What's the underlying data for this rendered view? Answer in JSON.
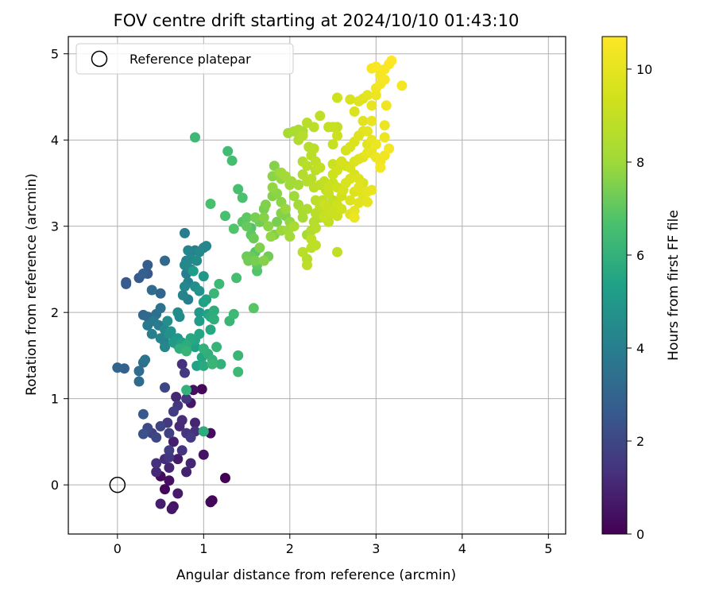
{
  "chart_data": {
    "type": "scatter",
    "title": "FOV centre drift starting at 2024/10/10 01:43:10",
    "xlabel": "Angular distance from reference (arcmin)",
    "ylabel": "Rotation from reference (arcmin)",
    "xlim": [
      -0.57,
      5.2
    ],
    "ylim": [
      -0.57,
      5.2
    ],
    "x_ticks": [
      0,
      1,
      2,
      3,
      4,
      5
    ],
    "y_ticks": [
      0,
      1,
      2,
      3,
      4,
      5
    ],
    "grid": true,
    "legend": {
      "position": "top-left",
      "entries": [
        "Reference platepar"
      ]
    },
    "reference_point": {
      "x": 0,
      "y": 0
    },
    "colorbar": {
      "label": "Hours from first FF file",
      "min": 0,
      "max": 10.7,
      "ticks": [
        0,
        2,
        4,
        6,
        8,
        10
      ],
      "colormap": "viridis"
    },
    "points": [
      [
        0.5,
        0.1,
        0.3
      ],
      [
        0.55,
        -0.05,
        0.2
      ],
      [
        0.6,
        0.05,
        0.4
      ],
      [
        0.65,
        -0.25,
        0.5
      ],
      [
        0.63,
        -0.28,
        0.6
      ],
      [
        0.7,
        0.3,
        0.7
      ],
      [
        0.6,
        0.2,
        1.0
      ],
      [
        0.45,
        0.15,
        1.1
      ],
      [
        0.45,
        0.25,
        1.3
      ],
      [
        0.55,
        0.3,
        1.2
      ],
      [
        0.6,
        0.32,
        1.5
      ],
      [
        0.65,
        0.5,
        0.8
      ],
      [
        0.8,
        0.15,
        0.9
      ],
      [
        0.85,
        0.25,
        1.0
      ],
      [
        1.0,
        0.35,
        0.5
      ],
      [
        1.08,
        0.6,
        0.3
      ],
      [
        1.08,
        -0.2,
        0.2
      ],
      [
        1.1,
        -0.18,
        0.1
      ],
      [
        1.25,
        0.08,
        0.0
      ],
      [
        0.98,
        1.11,
        0.2
      ],
      [
        0.88,
        1.1,
        0.4
      ],
      [
        0.85,
        0.95,
        0.6
      ],
      [
        0.7,
        0.92,
        1.5
      ],
      [
        0.68,
        1.02,
        1.0
      ],
      [
        0.75,
        0.75,
        1.2
      ],
      [
        0.8,
        0.6,
        1.4
      ],
      [
        0.9,
        0.72,
        1.0
      ],
      [
        0.9,
        0.62,
        1.3
      ],
      [
        0.85,
        0.55,
        1.6
      ],
      [
        0.72,
        0.68,
        1.1
      ],
      [
        0.6,
        0.6,
        1.8
      ],
      [
        0.58,
        0.72,
        1.6
      ],
      [
        0.5,
        0.68,
        1.9
      ],
      [
        0.45,
        0.55,
        2.0
      ],
      [
        0.4,
        0.6,
        1.8
      ],
      [
        0.35,
        0.66,
        2.1
      ],
      [
        0.3,
        0.59,
        2.4
      ],
      [
        0.6,
        0.4,
        1.7
      ],
      [
        0.75,
        1.4,
        1.3
      ],
      [
        0.78,
        1.3,
        1.6
      ],
      [
        0.55,
        1.13,
        2.0
      ],
      [
        0.65,
        0.85,
        1.7
      ],
      [
        0.8,
        1.0,
        1.5
      ],
      [
        0.75,
        0.4,
        1.4
      ],
      [
        0.5,
        -0.22,
        0.8
      ],
      [
        0.7,
        -0.1,
        0.7
      ],
      [
        0.3,
        0.82,
        2.6
      ],
      [
        0.25,
        1.2,
        3.2
      ],
      [
        0.25,
        1.32,
        3.3
      ],
      [
        0.3,
        1.42,
        3.4
      ],
      [
        0.32,
        1.45,
        3.6
      ],
      [
        0.0,
        1.36,
        3.0
      ],
      [
        0.08,
        1.35,
        2.9
      ],
      [
        0.1,
        2.35,
        2.5
      ],
      [
        0.1,
        2.33,
        2.7
      ],
      [
        0.25,
        2.4,
        2.6
      ],
      [
        0.3,
        2.45,
        2.8
      ],
      [
        0.35,
        2.45,
        2.5
      ],
      [
        0.35,
        2.55,
        2.7
      ],
      [
        0.4,
        2.26,
        3.3
      ],
      [
        0.5,
        2.22,
        3.0
      ],
      [
        0.55,
        2.6,
        3.2
      ],
      [
        0.3,
        1.97,
        3.1
      ],
      [
        0.35,
        1.95,
        3.2
      ],
      [
        0.45,
        1.98,
        3.4
      ],
      [
        0.5,
        2.05,
        3.5
      ],
      [
        0.42,
        1.9,
        3.7
      ],
      [
        0.48,
        1.85,
        3.9
      ],
      [
        0.35,
        1.85,
        3.8
      ],
      [
        0.4,
        1.75,
        4.0
      ],
      [
        0.5,
        1.7,
        4.2
      ],
      [
        0.55,
        1.65,
        4.1
      ],
      [
        0.55,
        1.6,
        4.3
      ],
      [
        0.55,
        1.8,
        4.4
      ],
      [
        0.58,
        1.9,
        4.6
      ],
      [
        0.6,
        1.75,
        4.7
      ],
      [
        0.62,
        1.78,
        4.8
      ],
      [
        0.7,
        1.7,
        5.0
      ],
      [
        0.7,
        1.62,
        4.9
      ],
      [
        0.65,
        1.65,
        5.1
      ],
      [
        0.7,
        2.0,
        4.5
      ],
      [
        0.72,
        1.95,
        4.4
      ],
      [
        0.76,
        2.2,
        4.2
      ],
      [
        0.82,
        2.15,
        4.0
      ],
      [
        0.78,
        2.3,
        4.3
      ],
      [
        0.82,
        2.35,
        4.1
      ],
      [
        0.8,
        2.45,
        4.0
      ],
      [
        0.85,
        2.5,
        4.2
      ],
      [
        0.78,
        2.55,
        4.4
      ],
      [
        0.8,
        2.6,
        4.1
      ],
      [
        0.85,
        2.62,
        4.3
      ],
      [
        0.82,
        2.72,
        4.2
      ],
      [
        0.9,
        2.72,
        4.0
      ],
      [
        0.78,
        2.92,
        3.9
      ],
      [
        0.92,
        2.6,
        4.5
      ],
      [
        0.95,
        2.7,
        4.4
      ],
      [
        1.0,
        2.75,
        4.2
      ],
      [
        1.03,
        2.77,
        4.3
      ],
      [
        0.9,
        2.3,
        4.6
      ],
      [
        0.95,
        2.25,
        4.8
      ],
      [
        1.0,
        2.42,
        5.0
      ],
      [
        0.88,
        2.48,
        5.2
      ],
      [
        0.95,
        2.0,
        5.0
      ],
      [
        1.0,
        2.12,
        5.3
      ],
      [
        1.03,
        2.15,
        5.4
      ],
      [
        0.95,
        1.9,
        5.2
      ],
      [
        0.95,
        1.75,
        5.5
      ],
      [
        1.05,
        1.98,
        5.4
      ],
      [
        1.08,
        1.8,
        5.6
      ],
      [
        1.08,
        1.95,
        5.7
      ],
      [
        1.12,
        2.02,
        5.8
      ],
      [
        1.12,
        1.92,
        5.9
      ],
      [
        0.9,
        1.6,
        5.3
      ],
      [
        0.9,
        1.68,
        5.5
      ],
      [
        0.85,
        1.7,
        5.6
      ],
      [
        0.8,
        1.62,
        5.8
      ],
      [
        0.75,
        1.65,
        5.4
      ],
      [
        0.72,
        1.58,
        5.9
      ],
      [
        0.8,
        1.55,
        6.1
      ],
      [
        1.0,
        1.58,
        6.0
      ],
      [
        1.05,
        1.52,
        5.9
      ],
      [
        1.0,
        1.38,
        5.7
      ],
      [
        0.98,
        1.48,
        5.5
      ],
      [
        0.92,
        1.38,
        5.4
      ],
      [
        1.1,
        1.45,
        6.0
      ],
      [
        1.1,
        1.4,
        6.2
      ],
      [
        1.15,
        1.6,
        6.1
      ],
      [
        1.2,
        1.4,
        6.0
      ],
      [
        0.9,
        4.03,
        6.3
      ],
      [
        1.0,
        0.62,
        5.8
      ],
      [
        0.8,
        1.1,
        6.0
      ],
      [
        1.12,
        2.22,
        6.2
      ],
      [
        1.18,
        2.33,
        6.3
      ],
      [
        1.3,
        1.9,
        6.2
      ],
      [
        1.35,
        1.98,
        6.3
      ],
      [
        1.4,
        1.5,
        6.2
      ],
      [
        1.4,
        1.31,
        6.3
      ],
      [
        1.38,
        2.4,
        6.5
      ],
      [
        1.25,
        3.12,
        6.6
      ],
      [
        1.28,
        3.87,
        6.4
      ],
      [
        1.33,
        3.76,
        6.5
      ],
      [
        1.4,
        3.43,
        6.6
      ],
      [
        1.45,
        3.33,
        6.7
      ],
      [
        1.08,
        3.26,
        6.6
      ],
      [
        1.35,
        2.97,
        6.8
      ],
      [
        1.45,
        3.05,
        6.9
      ],
      [
        1.5,
        3.1,
        7.0
      ],
      [
        1.5,
        3.0,
        7.1
      ],
      [
        1.55,
        2.9,
        7.0
      ],
      [
        1.55,
        2.98,
        6.8
      ],
      [
        1.58,
        2.86,
        7.2
      ],
      [
        1.6,
        2.7,
        6.9
      ],
      [
        1.55,
        2.65,
        7.1
      ],
      [
        1.5,
        2.65,
        7.2
      ],
      [
        1.52,
        2.6,
        7.3
      ],
      [
        1.62,
        2.55,
        7.0
      ],
      [
        1.62,
        2.48,
        6.8
      ],
      [
        1.58,
        2.05,
        6.9
      ],
      [
        1.6,
        2.6,
        7.4
      ],
      [
        1.65,
        2.75,
        7.5
      ],
      [
        1.75,
        2.65,
        7.3
      ],
      [
        1.7,
        2.6,
        7.6
      ],
      [
        1.65,
        3.05,
        7.3
      ],
      [
        1.6,
        3.1,
        7.4
      ],
      [
        1.7,
        3.1,
        7.6
      ],
      [
        1.75,
        3.0,
        7.7
      ],
      [
        1.78,
        2.88,
        7.8
      ],
      [
        1.82,
        2.9,
        7.5
      ],
      [
        1.7,
        3.2,
        7.4
      ],
      [
        1.72,
        3.25,
        7.5
      ],
      [
        1.8,
        3.35,
        7.6
      ],
      [
        1.85,
        3.38,
        7.7
      ],
      [
        1.8,
        3.45,
        7.8
      ],
      [
        1.9,
        3.28,
        7.7
      ],
      [
        1.9,
        3.15,
        7.6
      ],
      [
        1.95,
        3.2,
        7.9
      ],
      [
        1.95,
        3.12,
        7.5
      ],
      [
        2.0,
        3.05,
        7.8
      ],
      [
        1.85,
        3.05,
        7.4
      ],
      [
        1.98,
        2.95,
        8.0
      ],
      [
        1.9,
        2.95,
        7.9
      ],
      [
        2.0,
        2.88,
        8.1
      ],
      [
        1.8,
        3.58,
        7.7
      ],
      [
        1.82,
        3.7,
        7.6
      ],
      [
        1.88,
        3.62,
        7.9
      ],
      [
        1.9,
        3.55,
        7.8
      ],
      [
        2.0,
        3.48,
        8.0
      ],
      [
        2.02,
        3.52,
        8.1
      ],
      [
        2.1,
        3.48,
        8.2
      ],
      [
        2.05,
        3.35,
        8.0
      ],
      [
        2.1,
        3.25,
        8.1
      ],
      [
        2.15,
        3.18,
        8.3
      ],
      [
        2.15,
        3.1,
        8.2
      ],
      [
        2.2,
        3.2,
        8.4
      ],
      [
        2.05,
        3.0,
        8.3
      ],
      [
        2.2,
        2.9,
        8.2
      ],
      [
        2.25,
        2.95,
        8.5
      ],
      [
        2.3,
        2.98,
        8.4
      ],
      [
        2.28,
        3.05,
        8.6
      ],
      [
        2.35,
        3.1,
        8.5
      ],
      [
        2.15,
        2.7,
        8.7
      ],
      [
        2.2,
        2.62,
        8.6
      ],
      [
        2.25,
        2.75,
        8.8
      ],
      [
        2.3,
        2.78,
        8.9
      ],
      [
        2.55,
        2.7,
        8.9
      ],
      [
        1.98,
        4.08,
        8.2
      ],
      [
        2.05,
        4.1,
        8.3
      ],
      [
        2.1,
        4.12,
        8.4
      ],
      [
        2.15,
        4.1,
        8.3
      ],
      [
        2.1,
        4.0,
        8.5
      ],
      [
        2.15,
        4.05,
        8.6
      ],
      [
        2.2,
        4.2,
        8.7
      ],
      [
        2.28,
        4.15,
        8.8
      ],
      [
        2.35,
        4.28,
        8.9
      ],
      [
        2.22,
        3.92,
        8.6
      ],
      [
        2.25,
        3.82,
        8.7
      ],
      [
        2.28,
        3.9,
        8.8
      ],
      [
        2.3,
        3.75,
        8.9
      ],
      [
        2.35,
        3.68,
        9.0
      ],
      [
        2.3,
        3.65,
        8.8
      ],
      [
        2.2,
        3.7,
        8.7
      ],
      [
        2.15,
        3.75,
        8.6
      ],
      [
        2.15,
        3.6,
        8.5
      ],
      [
        2.2,
        3.52,
        8.6
      ],
      [
        2.25,
        3.55,
        8.7
      ],
      [
        2.28,
        3.45,
        8.8
      ],
      [
        2.35,
        3.48,
        8.9
      ],
      [
        2.4,
        3.52,
        9.0
      ],
      [
        2.42,
        3.42,
        8.9
      ],
      [
        2.45,
        3.38,
        9.1
      ],
      [
        2.5,
        3.3,
        9.0
      ],
      [
        2.5,
        3.15,
        9.1
      ],
      [
        2.45,
        3.2,
        9.0
      ],
      [
        2.4,
        3.25,
        9.2
      ],
      [
        2.38,
        3.3,
        8.9
      ],
      [
        2.3,
        3.3,
        8.8
      ],
      [
        2.3,
        3.15,
        8.7
      ],
      [
        2.35,
        3.22,
        8.8
      ],
      [
        2.4,
        3.12,
        9.1
      ],
      [
        2.45,
        3.05,
        9.0
      ],
      [
        2.48,
        3.18,
        9.2
      ],
      [
        2.55,
        3.25,
        9.3
      ],
      [
        2.55,
        3.12,
        9.2
      ],
      [
        2.6,
        3.2,
        9.4
      ],
      [
        2.45,
        3.45,
        9.2
      ],
      [
        2.5,
        3.5,
        9.1
      ],
      [
        2.55,
        3.45,
        9.3
      ],
      [
        2.6,
        3.35,
        9.4
      ],
      [
        2.62,
        3.42,
        9.5
      ],
      [
        2.65,
        3.5,
        9.6
      ],
      [
        2.7,
        3.55,
        9.7
      ],
      [
        2.75,
        3.6,
        9.5
      ],
      [
        2.8,
        3.55,
        9.8
      ],
      [
        2.8,
        3.45,
        9.9
      ],
      [
        2.85,
        3.5,
        9.6
      ],
      [
        2.75,
        3.4,
        9.7
      ],
      [
        2.7,
        3.3,
        9.8
      ],
      [
        2.85,
        3.35,
        9.9
      ],
      [
        2.9,
        3.4,
        10.0
      ],
      [
        2.5,
        3.6,
        9.3
      ],
      [
        2.55,
        3.65,
        9.4
      ],
      [
        2.5,
        3.72,
        9.2
      ],
      [
        2.6,
        3.75,
        9.5
      ],
      [
        2.65,
        3.7,
        9.4
      ],
      [
        2.7,
        3.68,
        9.6
      ],
      [
        2.75,
        3.75,
        9.7
      ],
      [
        2.8,
        3.78,
        9.8
      ],
      [
        2.85,
        3.8,
        9.9
      ],
      [
        2.9,
        3.85,
        10.0
      ],
      [
        2.95,
        3.85,
        10.1
      ],
      [
        3.0,
        3.8,
        10.2
      ],
      [
        3.05,
        3.75,
        10.3
      ],
      [
        3.05,
        3.68,
        10.4
      ],
      [
        3.1,
        3.82,
        10.3
      ],
      [
        3.15,
        3.9,
        10.4
      ],
      [
        3.1,
        4.03,
        10.2
      ],
      [
        2.5,
        3.95,
        9.1
      ],
      [
        2.55,
        4.05,
        9.2
      ],
      [
        2.45,
        4.15,
        9.0
      ],
      [
        2.5,
        4.15,
        9.1
      ],
      [
        2.55,
        4.15,
        9.0
      ],
      [
        2.65,
        3.88,
        9.5
      ],
      [
        2.7,
        3.92,
        9.6
      ],
      [
        2.75,
        3.98,
        9.7
      ],
      [
        2.8,
        4.05,
        9.8
      ],
      [
        2.85,
        4.1,
        9.9
      ],
      [
        2.9,
        4.1,
        10.0
      ],
      [
        2.9,
        3.95,
        9.9
      ],
      [
        2.95,
        4.0,
        10.1
      ],
      [
        3.0,
        3.95,
        10.2
      ],
      [
        2.95,
        4.22,
        10.1
      ],
      [
        2.85,
        4.22,
        9.9
      ],
      [
        2.75,
        4.33,
        9.7
      ],
      [
        2.8,
        4.45,
        9.8
      ],
      [
        2.85,
        4.48,
        9.9
      ],
      [
        2.9,
        4.52,
        10.0
      ],
      [
        2.95,
        4.4,
        10.1
      ],
      [
        2.7,
        4.47,
        9.6
      ],
      [
        2.55,
        4.49,
        9.3
      ],
      [
        3.0,
        4.52,
        10.2
      ],
      [
        3.0,
        4.6,
        10.3
      ],
      [
        3.05,
        4.65,
        10.4
      ],
      [
        3.05,
        4.75,
        10.4
      ],
      [
        3.1,
        4.82,
        10.5
      ],
      [
        3.1,
        4.7,
        10.5
      ],
      [
        3.15,
        4.88,
        10.6
      ],
      [
        3.18,
        4.92,
        10.7
      ],
      [
        3.0,
        4.85,
        10.6
      ],
      [
        2.95,
        4.83,
        10.5
      ],
      [
        3.12,
        4.4,
        10.3
      ],
      [
        3.3,
        4.63,
        10.4
      ],
      [
        3.1,
        4.17,
        10.2
      ],
      [
        2.95,
        3.42,
        10.1
      ],
      [
        2.9,
        3.28,
        10.0
      ],
      [
        2.8,
        3.27,
        9.9
      ],
      [
        2.75,
        3.18,
        10.0
      ],
      [
        2.7,
        3.14,
        9.9
      ],
      [
        2.75,
        3.1,
        10.2
      ],
      [
        2.4,
        3.1,
        9.0
      ],
      [
        2.3,
        2.98,
        8.7
      ],
      [
        2.25,
        2.85,
        8.9
      ],
      [
        2.2,
        2.55,
        8.8
      ],
      [
        1.9,
        3.62,
        8.0
      ],
      [
        1.95,
        3.58,
        8.1
      ]
    ]
  }
}
